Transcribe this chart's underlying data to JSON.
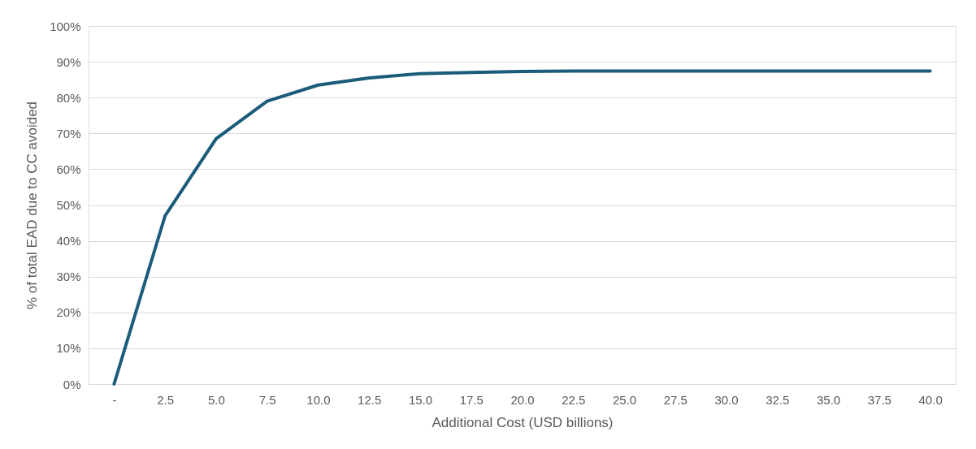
{
  "chart_data": {
    "type": "line",
    "xlabel": "Additional Cost (USD billions)",
    "ylabel": "% of total EAD due to CC avoided",
    "categories": [
      "-",
      "2.5",
      "5.0",
      "7.5",
      "10.0",
      "12.5",
      "15.0",
      "17.5",
      "20.0",
      "22.5",
      "25.0",
      "27.5",
      "30.0",
      "32.5",
      "35.0",
      "37.5",
      "40.0"
    ],
    "series": [
      {
        "color": "#1b5c7a",
        "values": [
          0,
          47,
          68.5,
          79,
          83.5,
          85.5,
          86.7,
          87,
          87.3,
          87.4,
          87.4,
          87.4,
          87.4,
          87.4,
          87.4,
          87.4,
          87.4
        ]
      }
    ],
    "ylim": [
      0,
      100
    ],
    "yticks": [
      {
        "value": 0,
        "label": "0%"
      },
      {
        "value": 10,
        "label": "10%"
      },
      {
        "value": 20,
        "label": "20%"
      },
      {
        "value": 30,
        "label": "30%"
      },
      {
        "value": 40,
        "label": "40%"
      },
      {
        "value": 50,
        "label": "50%"
      },
      {
        "value": 60,
        "label": "60%"
      },
      {
        "value": 70,
        "label": "70%"
      },
      {
        "value": 80,
        "label": "80%"
      },
      {
        "value": 90,
        "label": "90%"
      },
      {
        "value": 100,
        "label": "100%"
      }
    ],
    "grid": "y",
    "marker": "none",
    "line_style": "solid"
  }
}
